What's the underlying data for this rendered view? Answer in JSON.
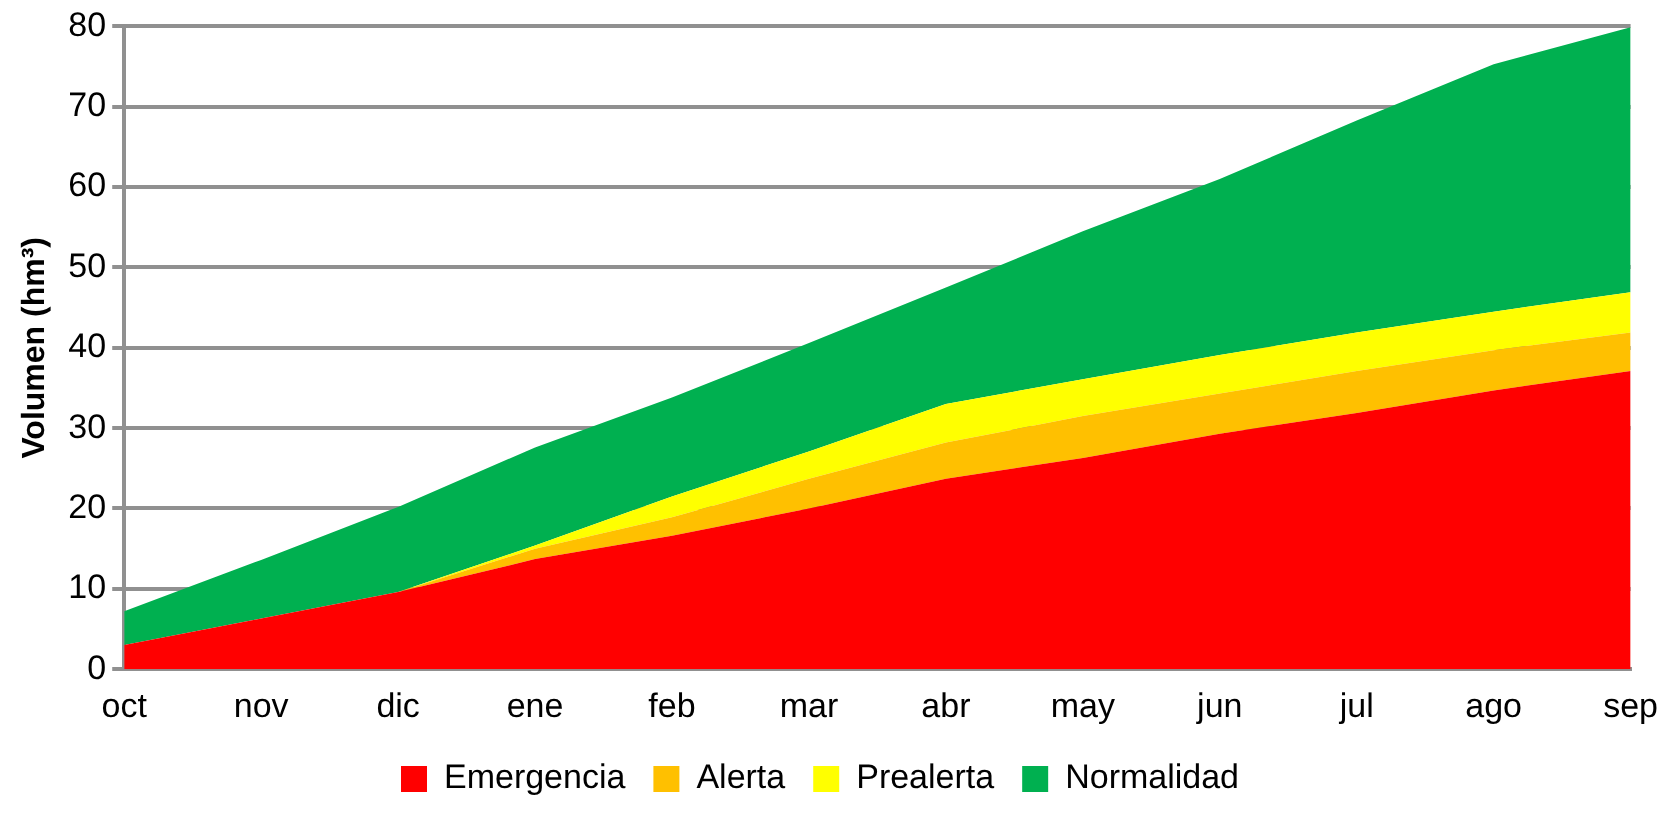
{
  "chart_data": {
    "type": "area",
    "stacked": true,
    "ylabel": "Volumen (hm³)",
    "categories": [
      "oct",
      "nov",
      "dic",
      "ene",
      "feb",
      "mar",
      "abr",
      "may",
      "jun",
      "jul",
      "ago",
      "sep"
    ],
    "series": [
      {
        "name": "Emergencia",
        "color": "#ff0000",
        "values": [
          3,
          6.3,
          9.6,
          13.7,
          16.6,
          20,
          23.7,
          26.3,
          29.3,
          31.9,
          34.7,
          37.1
        ]
      },
      {
        "name": "Alerta",
        "color": "#ffc000",
        "values": [
          0,
          0,
          0,
          1.3,
          2.3,
          3.7,
          4.5,
          5.2,
          5,
          5.2,
          5,
          4.8
        ]
      },
      {
        "name": "Prealerta",
        "color": "#ffff00",
        "values": [
          0,
          0,
          0,
          0.4,
          2.6,
          3.4,
          4.8,
          4.6,
          4.8,
          4.8,
          4.8,
          5
        ]
      },
      {
        "name": "Normalidad",
        "color": "#00b050",
        "values": [
          4.2,
          7.3,
          10.6,
          12.2,
          12.3,
          13.5,
          14.5,
          18.4,
          21.9,
          26.4,
          30.8,
          33
        ]
      }
    ],
    "ylim": [
      0,
      80
    ],
    "yticks": [
      0,
      10,
      20,
      30,
      40,
      50,
      60,
      70,
      80
    ],
    "grid": "y",
    "legend": "bottom",
    "marker": "none"
  }
}
